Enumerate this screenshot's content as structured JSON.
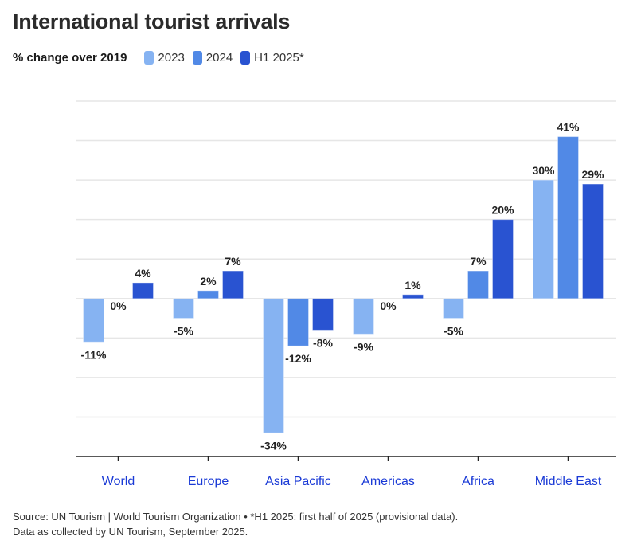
{
  "header": {
    "title": "International tourist arrivals",
    "subtitle": "% change over 2019"
  },
  "legend": [
    {
      "label": "2023",
      "color": "#86b3f2"
    },
    {
      "label": "2024",
      "color": "#5189e6"
    },
    {
      "label": "H1 2025*",
      "color": "#2953d1"
    }
  ],
  "footer": {
    "line1": "Source: UN Tourism | World Tourism Organization • *H1 2025: first half of 2025 (provisional data).",
    "line2": "Data as collected by UN Tourism, September 2025."
  },
  "chart_data": {
    "type": "bar",
    "title": "International tourist arrivals",
    "subtitle": "% change over 2019",
    "xlabel": "",
    "ylabel": "% change over 2019",
    "categories": [
      "World",
      "Europe",
      "Asia Pacific",
      "Americas",
      "Africa",
      "Middle East"
    ],
    "series": [
      {
        "name": "2023",
        "color": "#86b3f2",
        "values": [
          -11,
          -5,
          -34,
          -9,
          -5,
          30
        ]
      },
      {
        "name": "2024",
        "color": "#5189e6",
        "values": [
          0,
          2,
          -12,
          0,
          7,
          41
        ]
      },
      {
        "name": "H1 2025*",
        "color": "#2953d1",
        "values": [
          4,
          7,
          -8,
          1,
          20,
          29
        ]
      }
    ],
    "ylim": [
      -40,
      50
    ],
    "ytick_step": 10,
    "grid": true,
    "data_label_suffix": "%",
    "category_label_color": "#1a3ad6",
    "legend_position": "top-left"
  }
}
